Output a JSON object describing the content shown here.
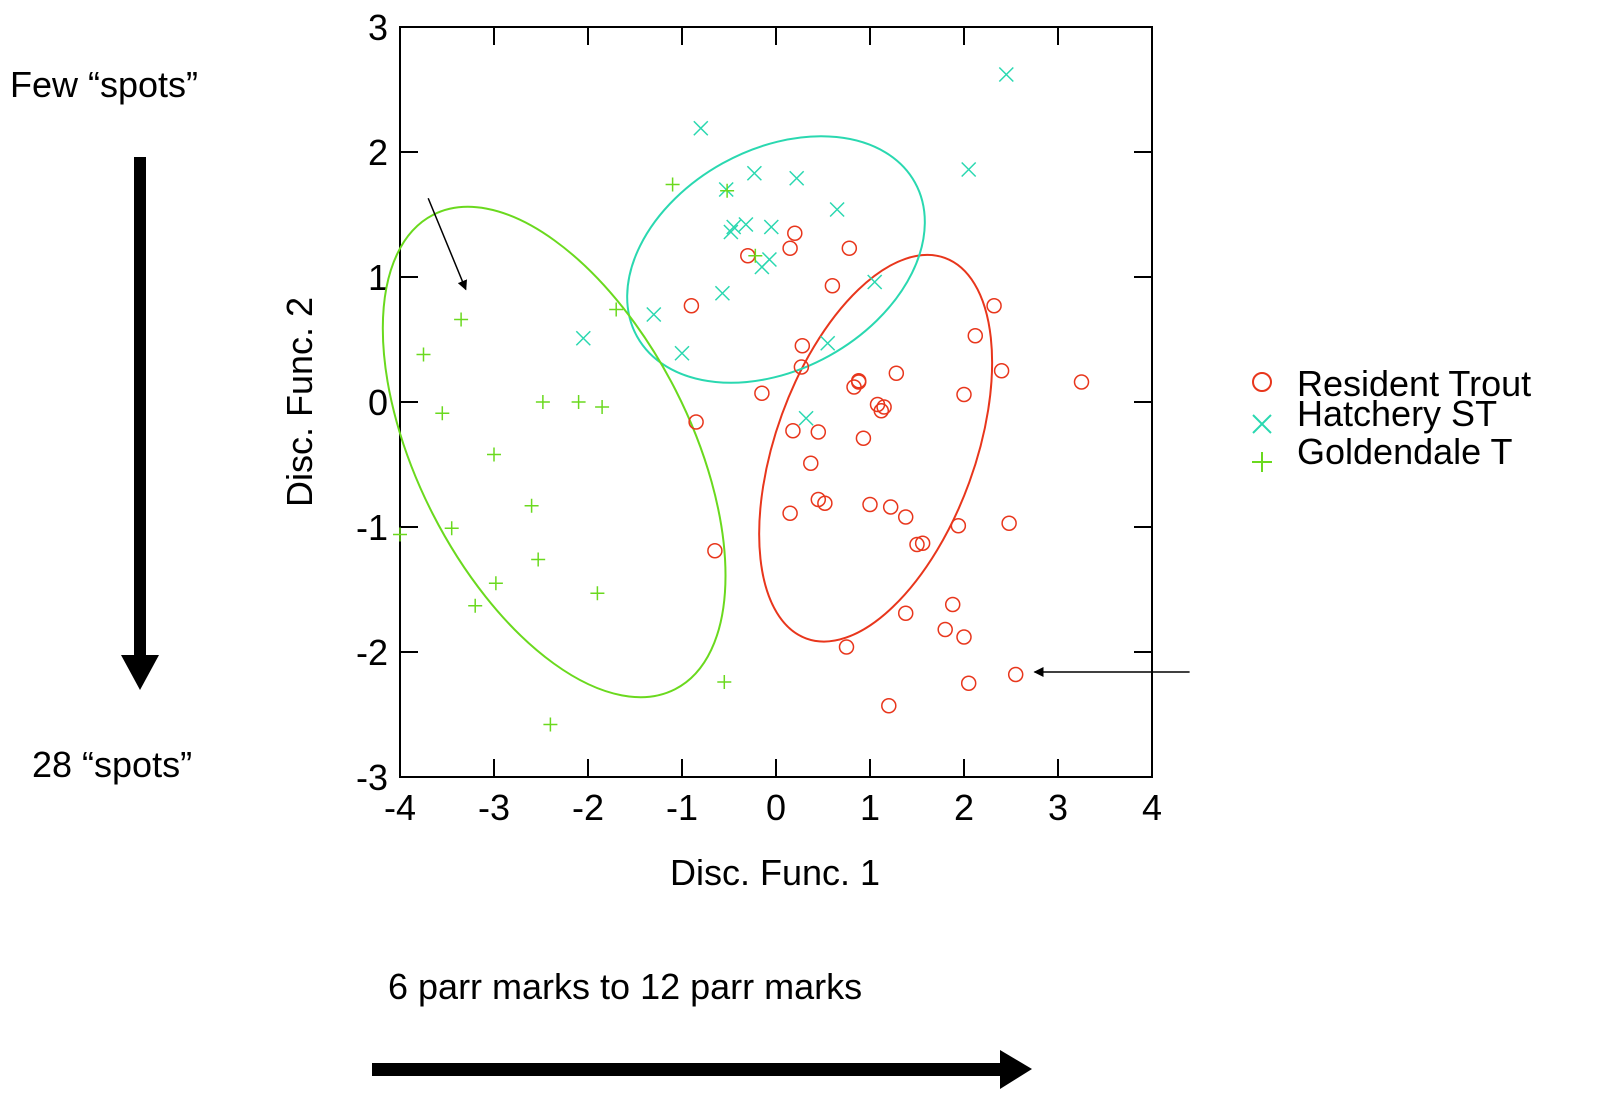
{
  "annotations": {
    "top_label": "Few “spots”",
    "bottom_label": "28 “spots”",
    "x_arrow_label": "6 parr marks to 12 parr marks"
  },
  "colors": {
    "resident": "#e8361c",
    "hatchery": "#2ad8b0",
    "goldendale": "#6ad91e",
    "axis": "#000000"
  },
  "chart_data": {
    "type": "scatter",
    "title": "",
    "xlabel": "Disc. Func. 1",
    "ylabel": "Disc. Func. 2",
    "xlim": [
      -4,
      4
    ],
    "ylim": [
      -3,
      3
    ],
    "xticks": [
      "-4",
      "-3",
      "-2",
      "-1",
      "0",
      "1",
      "2",
      "3",
      "4"
    ],
    "yticks": [
      "-3",
      "-2",
      "-1",
      "0",
      "1",
      "2",
      "3"
    ],
    "grid": false,
    "legend_position": "right",
    "series": [
      {
        "name": "Resident Trout",
        "marker": "circle",
        "color": "#e8361c",
        "points": [
          [
            -0.9,
            0.77
          ],
          [
            -0.85,
            -0.16
          ],
          [
            -0.65,
            -1.19
          ],
          [
            -0.3,
            1.17
          ],
          [
            -0.15,
            0.07
          ],
          [
            0.15,
            1.23
          ],
          [
            0.2,
            1.35
          ],
          [
            0.18,
            -0.23
          ],
          [
            0.28,
            0.45
          ],
          [
            0.27,
            0.28
          ],
          [
            0.37,
            -0.49
          ],
          [
            0.45,
            -0.24
          ],
          [
            0.45,
            -0.78
          ],
          [
            0.52,
            -0.81
          ],
          [
            0.15,
            -0.89
          ],
          [
            0.6,
            0.93
          ],
          [
            0.78,
            1.23
          ],
          [
            0.83,
            0.12
          ],
          [
            0.88,
            0.17
          ],
          [
            0.88,
            0.16
          ],
          [
            0.93,
            -0.29
          ],
          [
            1.0,
            -0.82
          ],
          [
            1.08,
            -0.02
          ],
          [
            1.12,
            -0.07
          ],
          [
            1.15,
            -0.04
          ],
          [
            1.22,
            -0.84
          ],
          [
            1.28,
            0.23
          ],
          [
            1.38,
            -0.92
          ],
          [
            1.5,
            -1.14
          ],
          [
            1.56,
            -1.13
          ],
          [
            1.38,
            -1.69
          ],
          [
            0.75,
            -1.96
          ],
          [
            1.2,
            -2.43
          ],
          [
            1.8,
            -1.82
          ],
          [
            1.88,
            -1.62
          ],
          [
            1.94,
            -0.99
          ],
          [
            2.0,
            0.06
          ],
          [
            2.0,
            -1.88
          ],
          [
            2.05,
            -2.25
          ],
          [
            2.12,
            0.53
          ],
          [
            2.32,
            0.77
          ],
          [
            2.4,
            0.25
          ],
          [
            2.48,
            -0.97
          ],
          [
            2.55,
            -2.18
          ],
          [
            3.25,
            0.16
          ]
        ]
      },
      {
        "name": "Hatchery ST",
        "marker": "x",
        "color": "#2ad8b0",
        "points": [
          [
            -2.05,
            0.51
          ],
          [
            -1.3,
            0.7
          ],
          [
            -1.0,
            0.39
          ],
          [
            -0.8,
            2.19
          ],
          [
            -0.57,
            0.87
          ],
          [
            -0.53,
            1.7
          ],
          [
            -0.48,
            1.36
          ],
          [
            -0.45,
            1.4
          ],
          [
            -0.32,
            1.42
          ],
          [
            -0.23,
            1.83
          ],
          [
            -0.15,
            1.08
          ],
          [
            -0.05,
            1.4
          ],
          [
            0.22,
            1.79
          ],
          [
            0.32,
            -0.13
          ],
          [
            0.55,
            0.47
          ],
          [
            0.65,
            1.54
          ],
          [
            1.05,
            0.96
          ],
          [
            2.05,
            1.86
          ],
          [
            2.45,
            2.62
          ],
          [
            -0.07,
            1.14
          ]
        ]
      },
      {
        "name": "Goldendale T",
        "marker": "plus",
        "color": "#6ad91e",
        "points": [
          [
            -4.0,
            -1.06
          ],
          [
            -3.75,
            0.38
          ],
          [
            -3.55,
            -0.09
          ],
          [
            -3.45,
            -1.01
          ],
          [
            -3.35,
            0.66
          ],
          [
            -3.2,
            -1.63
          ],
          [
            -3.0,
            -0.42
          ],
          [
            -2.98,
            -1.45
          ],
          [
            -2.6,
            -0.83
          ],
          [
            -2.53,
            -1.26
          ],
          [
            -2.48,
            0.0
          ],
          [
            -2.4,
            -2.58
          ],
          [
            -2.1,
            0.0
          ],
          [
            -1.9,
            -1.53
          ],
          [
            -1.85,
            -0.04
          ],
          [
            -1.7,
            0.74
          ],
          [
            -1.1,
            1.74
          ],
          [
            -0.55,
            -2.24
          ],
          [
            -0.52,
            1.69
          ],
          [
            -0.22,
            1.17
          ]
        ]
      }
    ],
    "ellipses": [
      {
        "series": "Resident Trout",
        "cx": 1.06,
        "cy": -0.37,
        "rx": 1.06,
        "ry": 1.62,
        "angle_deg": 20
      },
      {
        "series": "Hatchery ST",
        "cx": 0.0,
        "cy": 1.14,
        "rx": 1.69,
        "ry": 0.88,
        "angle_deg": -29
      },
      {
        "series": "Goldendale T",
        "cx": -2.36,
        "cy": -0.4,
        "rx": 1.45,
        "ry": 2.13,
        "angle_deg": -27
      }
    ],
    "arrows": [
      {
        "from": [
          -3.7,
          1.63
        ],
        "to": [
          -3.3,
          0.9
        ]
      },
      {
        "from": [
          4.4,
          -2.16
        ],
        "to": [
          2.75,
          -2.16
        ]
      }
    ]
  }
}
